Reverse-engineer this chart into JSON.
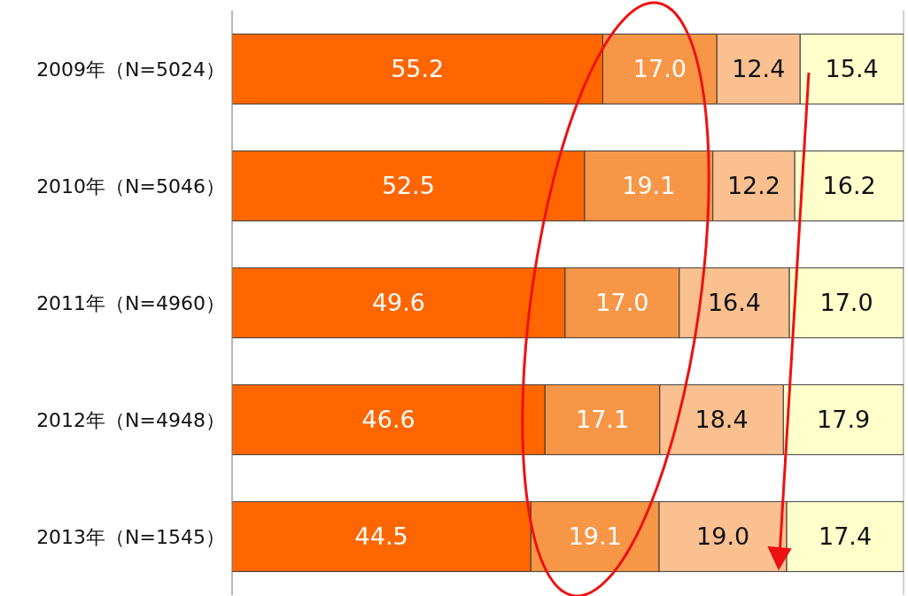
{
  "chart_data": {
    "type": "bar",
    "orientation": "horizontal",
    "stacked": true,
    "categories": [
      "2009年（N=5024）",
      "2010年（N=5046）",
      "2011年（N=4960）",
      "2012年（N=4948）",
      "2013年（N=1545）"
    ],
    "series": [
      {
        "color": "#ff6600",
        "values": [
          55.2,
          52.5,
          49.6,
          46.6,
          44.5
        ],
        "value_labels": [
          "55.2",
          "52.5",
          "49.6",
          "46.6",
          "44.5"
        ]
      },
      {
        "color": "#f79646",
        "values": [
          17.0,
          19.1,
          17.0,
          17.1,
          19.1
        ],
        "value_labels": [
          "17.0",
          "19.1",
          "17.0",
          "17.1",
          "19.1"
        ]
      },
      {
        "color": "#fac090",
        "values": [
          12.4,
          12.2,
          16.4,
          18.4,
          19.0
        ],
        "value_labels": [
          "12.4",
          "12.2",
          "16.4",
          "18.4",
          "19.0"
        ]
      },
      {
        "color": "#ffffcc",
        "values": [
          15.4,
          16.2,
          17.0,
          17.9,
          17.4
        ],
        "value_labels": [
          "15.4",
          "16.2",
          "17.0",
          "17.9",
          "17.4"
        ]
      }
    ],
    "tick_labels": "y",
    "grid": "x"
  }
}
